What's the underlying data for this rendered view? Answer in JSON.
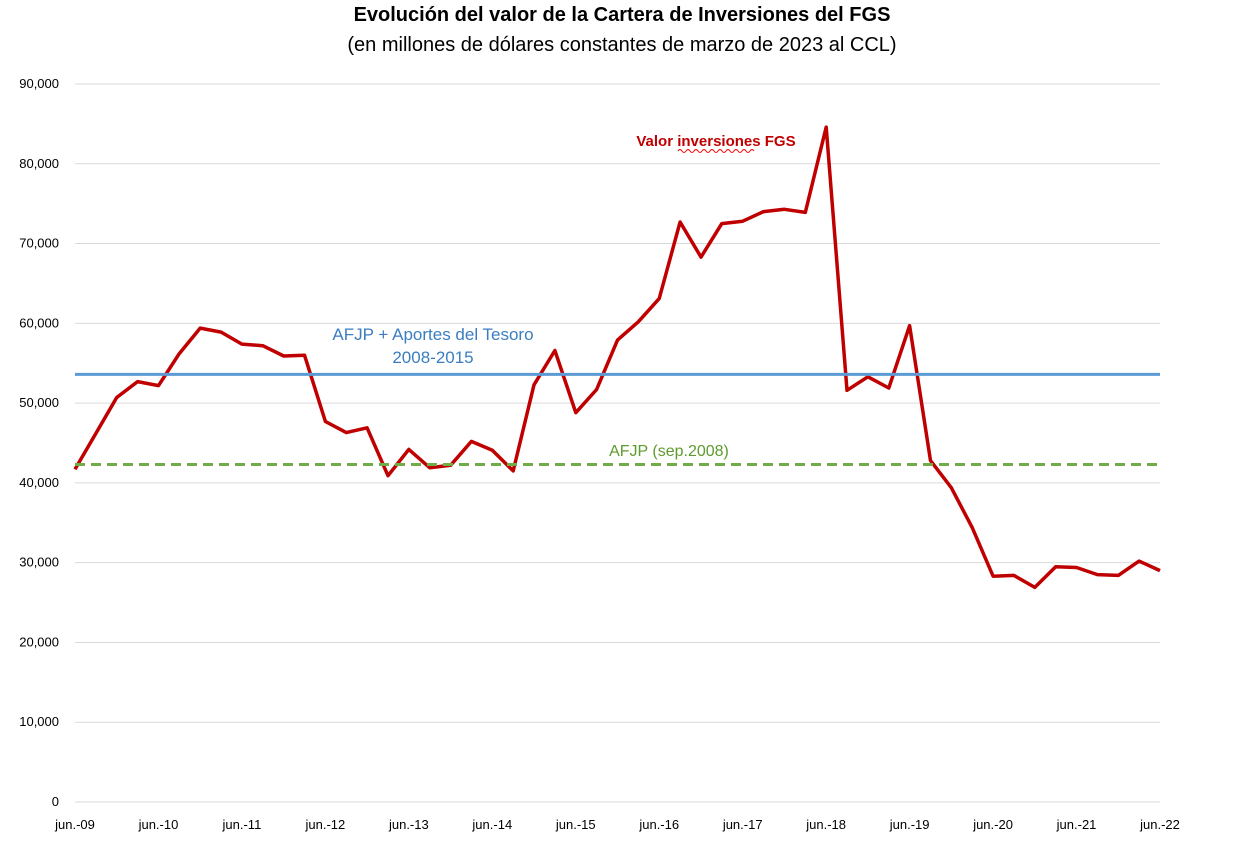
{
  "title": "Evolución del valor de la Cartera de Inversiones del FGS",
  "subtitle": "(en millones de dólares constantes de marzo de 2023 al CCL)",
  "chart_data": {
    "type": "line",
    "ylim": [
      0,
      90000
    ],
    "yticks": [
      0,
      10000,
      20000,
      30000,
      40000,
      50000,
      60000,
      70000,
      80000,
      90000
    ],
    "ytick_labels": [
      "0",
      "10,000",
      "20,000",
      "30,000",
      "40,000",
      "50,000",
      "60,000",
      "70,000",
      "80,000",
      "90,000"
    ],
    "xtick_labels": [
      "jun.-09",
      "jun.-10",
      "jun.-11",
      "jun.-12",
      "jun.-13",
      "jun.-14",
      "jun.-15",
      "jun.-16",
      "jun.-17",
      "jun.-18",
      "jun.-19",
      "jun.-20",
      "jun.-21",
      "jun.-22"
    ],
    "grid": true,
    "series": [
      {
        "name": "Valor inversiones FGS",
        "color": "#c00000",
        "x": [
          0,
          0.25,
          0.5,
          0.75,
          1,
          1.25,
          1.5,
          1.75,
          2,
          2.25,
          2.5,
          2.75,
          3,
          3.25,
          3.5,
          3.75,
          4,
          4.25,
          4.5,
          4.75,
          5,
          5.25,
          5.5,
          5.75,
          6,
          6.25,
          6.5,
          6.75,
          7,
          7.25,
          7.5,
          7.75,
          8,
          8.25,
          8.5,
          8.75,
          9,
          9.25,
          9.5,
          9.75,
          10,
          10.25,
          10.5,
          10.75,
          11,
          11.25,
          11.5,
          11.75,
          12,
          12.25,
          12.5,
          12.75,
          13
        ],
        "y": [
          41700,
          46200,
          50700,
          52700,
          52200,
          56200,
          59400,
          58900,
          57400,
          57200,
          55900,
          56000,
          47700,
          46300,
          46900,
          40900,
          44200,
          41900,
          42200,
          45200,
          44100,
          41500,
          52300,
          56600,
          48800,
          51700,
          57900,
          60200,
          63100,
          72700,
          68300,
          72500,
          72800,
          74000,
          74300,
          73900,
          84600,
          51600,
          53300,
          51900,
          59700,
          42800,
          39400,
          34400,
          28300,
          28400,
          26900,
          29500,
          29400,
          28500,
          28400,
          30200,
          29000
        ]
      },
      {
        "name": "AFJP + Aportes del Tesoro 2008-2015",
        "color": "#5b9bd5",
        "x": [
          0,
          13
        ],
        "y": [
          53600,
          53600
        ]
      },
      {
        "name": "AFJP (sep.2008)",
        "color": "#70ad47",
        "dashed": true,
        "x": [
          0,
          13
        ],
        "y": [
          42300,
          42300
        ]
      }
    ],
    "annotations": {
      "red": "Valor inversiones FGS",
      "blue_line1": "AFJP + Aportes del Tesoro",
      "blue_line2": "2008-2015",
      "green": "AFJP (sep.2008)"
    }
  }
}
